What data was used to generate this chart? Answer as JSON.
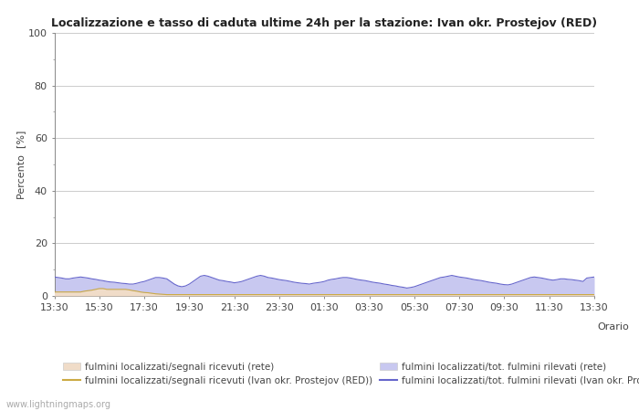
{
  "title": "Localizzazione e tasso di caduta ultime 24h per la stazione: Ivan okr. Prostejov (RED)",
  "xlabel": "Orario",
  "ylabel": "Percento  [%]",
  "ylim": [
    0,
    100
  ],
  "yticks": [
    0,
    20,
    40,
    60,
    80,
    100
  ],
  "ytick_minor": [
    10,
    30,
    50,
    70,
    90
  ],
  "x_labels": [
    "13:30",
    "15:30",
    "17:30",
    "19:30",
    "21:30",
    "23:30",
    "01:30",
    "03:30",
    "05:30",
    "07:30",
    "09:30",
    "11:30",
    "13:30"
  ],
  "bg_color": "#ffffff",
  "plot_bg_color": "#ffffff",
  "grid_color": "#cccccc",
  "fill_blue_color": "#c8c8f0",
  "fill_yellow_color": "#f0dcc8",
  "line_blue_color": "#6666cc",
  "line_yellow_color": "#ccaa44",
  "watermark": "www.lightningmaps.org",
  "legend_row1_left_label": "fulmini localizzati/segnali ricevuti (rete)",
  "legend_row1_right_label": "fulmini localizzati/segnali ricevuti (Ivan okr. Prostejov (RED))",
  "legend_row2_left_label": "fulmini localizzati/tot. fulmini rilevati (rete)",
  "legend_row2_right_label": "fulmini localizzati/tot. fulmini rilevati (Ivan okr. Prostejov (RED))",
  "orario_label": "Orario",
  "n_points": 145,
  "blue_values": [
    7.2,
    7.0,
    6.8,
    6.5,
    6.5,
    6.8,
    7.0,
    7.2,
    7.0,
    6.8,
    6.5,
    6.3,
    6.0,
    5.8,
    5.5,
    5.3,
    5.2,
    5.0,
    4.8,
    4.7,
    4.5,
    4.5,
    4.8,
    5.2,
    5.5,
    6.0,
    6.5,
    7.0,
    7.0,
    6.8,
    6.5,
    5.5,
    4.5,
    3.8,
    3.5,
    3.8,
    4.5,
    5.5,
    6.5,
    7.5,
    7.8,
    7.5,
    7.0,
    6.5,
    6.0,
    5.8,
    5.5,
    5.3,
    5.0,
    5.2,
    5.5,
    6.0,
    6.5,
    7.0,
    7.5,
    7.8,
    7.5,
    7.0,
    6.8,
    6.5,
    6.2,
    6.0,
    5.8,
    5.5,
    5.2,
    5.0,
    4.8,
    4.7,
    4.5,
    4.8,
    5.0,
    5.2,
    5.5,
    6.0,
    6.3,
    6.5,
    6.8,
    7.0,
    7.0,
    6.8,
    6.5,
    6.2,
    6.0,
    5.8,
    5.5,
    5.2,
    5.0,
    4.8,
    4.5,
    4.3,
    4.0,
    3.8,
    3.5,
    3.3,
    3.0,
    3.2,
    3.5,
    4.0,
    4.5,
    5.0,
    5.5,
    6.0,
    6.5,
    7.0,
    7.2,
    7.5,
    7.8,
    7.5,
    7.2,
    7.0,
    6.8,
    6.5,
    6.2,
    6.0,
    5.8,
    5.5,
    5.2,
    5.0,
    4.8,
    4.5,
    4.3,
    4.2,
    4.5,
    5.0,
    5.5,
    6.0,
    6.5,
    7.0,
    7.2,
    7.0,
    6.8,
    6.5,
    6.2,
    6.0,
    6.2,
    6.5,
    6.5,
    6.3,
    6.2,
    6.0,
    5.8,
    5.5,
    6.8,
    7.0,
    7.2
  ],
  "yellow_values": [
    1.5,
    1.5,
    1.5,
    1.5,
    1.5,
    1.5,
    1.5,
    1.5,
    1.8,
    2.0,
    2.2,
    2.5,
    2.8,
    2.8,
    2.5,
    2.5,
    2.5,
    2.5,
    2.5,
    2.5,
    2.3,
    2.0,
    1.8,
    1.5,
    1.3,
    1.2,
    1.0,
    0.8,
    0.7,
    0.6,
    0.5,
    0.5,
    0.5,
    0.5,
    0.5,
    0.5,
    0.5,
    0.5,
    0.5,
    0.5,
    0.5,
    0.5,
    0.5,
    0.5,
    0.5,
    0.5,
    0.5,
    0.5,
    0.5,
    0.5,
    0.5,
    0.5,
    0.5,
    0.5,
    0.5,
    0.5,
    0.5,
    0.5,
    0.5,
    0.5,
    0.5,
    0.5,
    0.5,
    0.5,
    0.5,
    0.5,
    0.5,
    0.5,
    0.5,
    0.5,
    0.5,
    0.5,
    0.5,
    0.5,
    0.5,
    0.5,
    0.5,
    0.5,
    0.5,
    0.5,
    0.5,
    0.5,
    0.5,
    0.5,
    0.5,
    0.5,
    0.5,
    0.5,
    0.5,
    0.5,
    0.5,
    0.5,
    0.5,
    0.5,
    0.5,
    0.5,
    0.5,
    0.5,
    0.5,
    0.5,
    0.5,
    0.5,
    0.5,
    0.5,
    0.5,
    0.5,
    0.5,
    0.5,
    0.5,
    0.5,
    0.5,
    0.5,
    0.5,
    0.5,
    0.5,
    0.5,
    0.5,
    0.5,
    0.5,
    0.5,
    0.5,
    0.5,
    0.5,
    0.5,
    0.5,
    0.5,
    0.5,
    0.5,
    0.5,
    0.5,
    0.5,
    0.5,
    0.5,
    0.5,
    0.5,
    0.5,
    0.5,
    0.5,
    0.5,
    0.5,
    0.5,
    0.5,
    0.5,
    0.5,
    0.5
  ]
}
